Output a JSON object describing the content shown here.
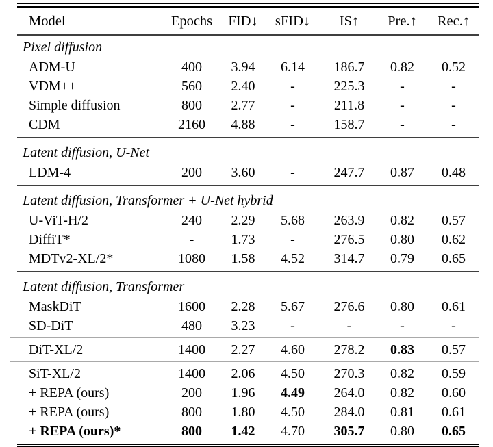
{
  "page": {
    "background_color": "#ffffff",
    "text_color": "#000000"
  },
  "rule_colors": {
    "outer": "#000000",
    "section": "#3f3f3f",
    "light": "#a9a9a9"
  },
  "table": {
    "columns": [
      "Model",
      "Epochs",
      "FID↓",
      "sFID↓",
      "IS↑",
      "Pre.↑",
      "Rec.↑"
    ],
    "sections": [
      {
        "header": "Pixel diffusion",
        "groups": [
          {
            "rows": [
              {
                "model": "ADM-U",
                "bold_model": false,
                "values": [
                  "400",
                  "3.94",
                  "6.14",
                  "186.7",
                  "0.82",
                  "0.52"
                ],
                "bold_values": []
              },
              {
                "model": "VDM++",
                "bold_model": false,
                "values": [
                  "560",
                  "2.40",
                  "-",
                  "225.3",
                  "-",
                  "-"
                ],
                "bold_values": []
              },
              {
                "model": "Simple diffusion",
                "bold_model": false,
                "values": [
                  "800",
                  "2.77",
                  "-",
                  "211.8",
                  "-",
                  "-"
                ],
                "bold_values": []
              },
              {
                "model": "CDM",
                "bold_model": false,
                "values": [
                  "2160",
                  "4.88",
                  "-",
                  "158.7",
                  "-",
                  "-"
                ],
                "bold_values": []
              }
            ]
          }
        ]
      },
      {
        "header": "Latent diffusion, U-Net",
        "groups": [
          {
            "rows": [
              {
                "model": "LDM-4",
                "bold_model": false,
                "values": [
                  "200",
                  "3.60",
                  "-",
                  "247.7",
                  "0.87",
                  "0.48"
                ],
                "bold_values": []
              }
            ]
          }
        ]
      },
      {
        "header": "Latent diffusion, Transformer + U-Net hybrid",
        "groups": [
          {
            "rows": [
              {
                "model": "U-ViT-H/2",
                "bold_model": false,
                "values": [
                  "240",
                  "2.29",
                  "5.68",
                  "263.9",
                  "0.82",
                  "0.57"
                ],
                "bold_values": []
              },
              {
                "model": "DiffiT*",
                "bold_model": false,
                "values": [
                  "-",
                  "1.73",
                  "-",
                  "276.5",
                  "0.80",
                  "0.62"
                ],
                "bold_values": []
              },
              {
                "model": "MDTv2-XL/2*",
                "bold_model": false,
                "values": [
                  "1080",
                  "1.58",
                  "4.52",
                  "314.7",
                  "0.79",
                  "0.65"
                ],
                "bold_values": []
              }
            ]
          }
        ]
      },
      {
        "header": "Latent diffusion, Transformer",
        "groups": [
          {
            "rows": [
              {
                "model": "MaskDiT",
                "bold_model": false,
                "values": [
                  "1600",
                  "2.28",
                  "5.67",
                  "276.6",
                  "0.80",
                  "0.61"
                ],
                "bold_values": []
              },
              {
                "model": "SD-DiT",
                "bold_model": false,
                "values": [
                  "480",
                  "3.23",
                  "-",
                  "-",
                  "-",
                  "-"
                ],
                "bold_values": []
              }
            ]
          },
          {
            "rows": [
              {
                "model": "DiT-XL/2",
                "bold_model": false,
                "values": [
                  "1400",
                  "2.27",
                  "4.60",
                  "278.2",
                  "0.83",
                  "0.57"
                ],
                "bold_values": [
                  4
                ]
              }
            ]
          },
          {
            "rows": [
              {
                "model": "SiT-XL/2",
                "bold_model": false,
                "values": [
                  "1400",
                  "2.06",
                  "4.50",
                  "270.3",
                  "0.82",
                  "0.59"
                ],
                "bold_values": []
              },
              {
                "model": "+ REPA (ours)",
                "bold_model": false,
                "values": [
                  "200",
                  "1.96",
                  "4.49",
                  "264.0",
                  "0.82",
                  "0.60"
                ],
                "bold_values": [
                  2
                ]
              },
              {
                "model": "+ REPA (ours)",
                "bold_model": false,
                "values": [
                  "800",
                  "1.80",
                  "4.50",
                  "284.0",
                  "0.81",
                  "0.61"
                ],
                "bold_values": []
              },
              {
                "model": "+ REPA (ours)*",
                "bold_model": true,
                "values": [
                  "800",
                  "1.42",
                  "4.70",
                  "305.7",
                  "0.80",
                  "0.65"
                ],
                "bold_values": [
                  0,
                  1,
                  3,
                  5
                ]
              }
            ]
          }
        ]
      }
    ]
  }
}
